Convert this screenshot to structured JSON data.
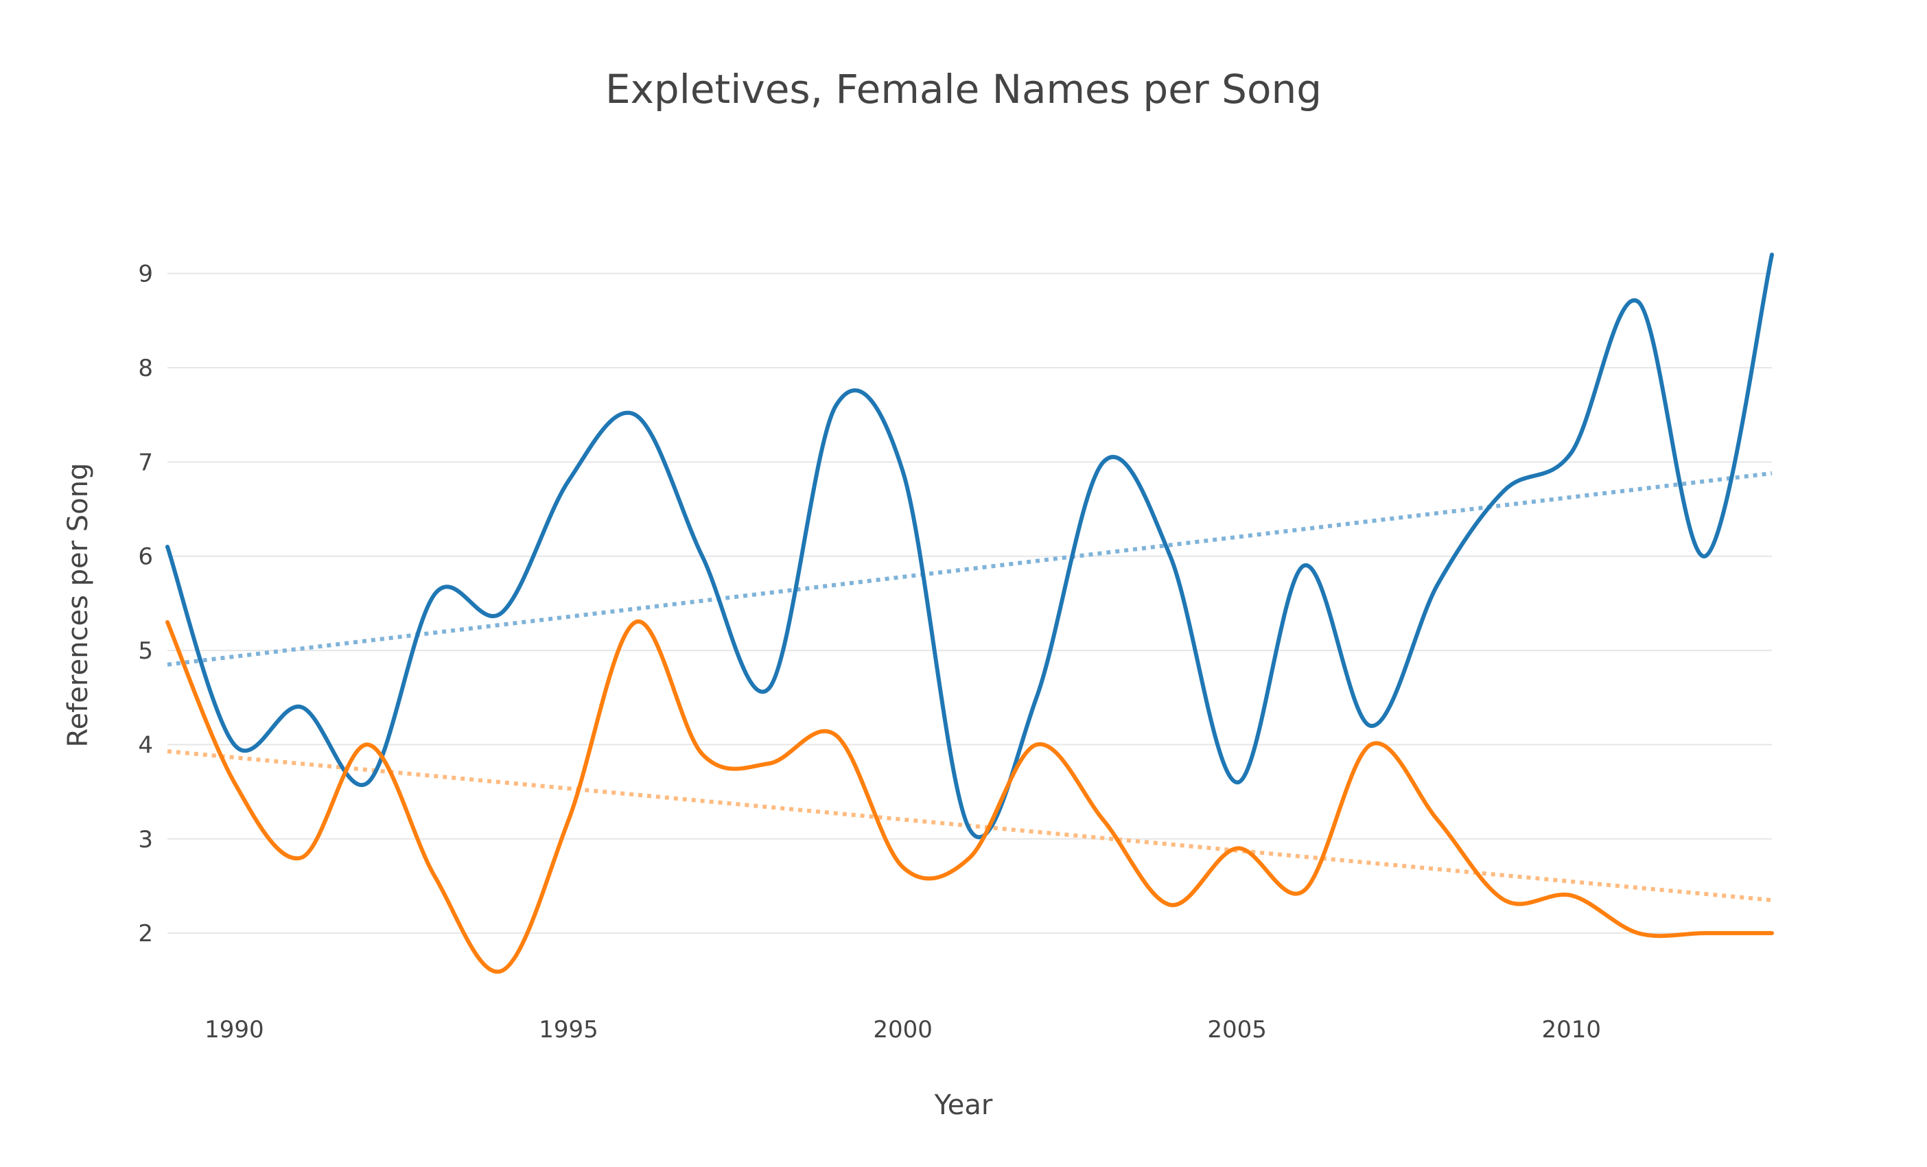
{
  "chart_data": {
    "type": "line",
    "title": "Expletives, Female Names per Song",
    "xlabel": "Year",
    "ylabel": "References per Song",
    "xlim": [
      1989,
      2013
    ],
    "ylim": [
      1.2,
      9.5
    ],
    "x_ticks": [
      1990,
      1995,
      2000,
      2005,
      2010
    ],
    "y_ticks": [
      2,
      3,
      4,
      5,
      6,
      7,
      8,
      9
    ],
    "grid": "horizontal",
    "legend": "none",
    "x": [
      1989,
      1990,
      1991,
      1992,
      1993,
      1994,
      1995,
      1996,
      1997,
      1998,
      1999,
      2000,
      2001,
      2002,
      2003,
      2004,
      2005,
      2006,
      2007,
      2008,
      2009,
      2010,
      2011,
      2012,
      2013
    ],
    "series": [
      {
        "color": "#1f77b4",
        "values": [
          6.1,
          4.0,
          4.4,
          3.6,
          5.6,
          5.4,
          6.8,
          7.5,
          6.0,
          4.6,
          7.6,
          6.9,
          3.1,
          4.5,
          7.0,
          6.0,
          3.6,
          5.9,
          4.2,
          5.7,
          6.7,
          7.1,
          8.7,
          6.0,
          9.2
        ]
      },
      {
        "color": "#ff7f0e",
        "values": [
          5.3,
          3.6,
          2.8,
          4.0,
          2.6,
          1.6,
          3.2,
          5.3,
          3.9,
          3.8,
          4.1,
          2.7,
          2.8,
          4.0,
          3.2,
          2.3,
          2.9,
          2.45,
          4.0,
          3.2,
          2.35,
          2.4,
          2.0,
          2.0,
          2.0
        ]
      }
    ],
    "trendlines": [
      {
        "color": "#7fb3d9",
        "style": "dotted",
        "x": [
          1989,
          2013
        ],
        "y": [
          4.85,
          6.88
        ]
      },
      {
        "color": "#ffbb80",
        "style": "dotted",
        "x": [
          1989,
          2013
        ],
        "y": [
          3.93,
          2.35
        ]
      }
    ]
  }
}
